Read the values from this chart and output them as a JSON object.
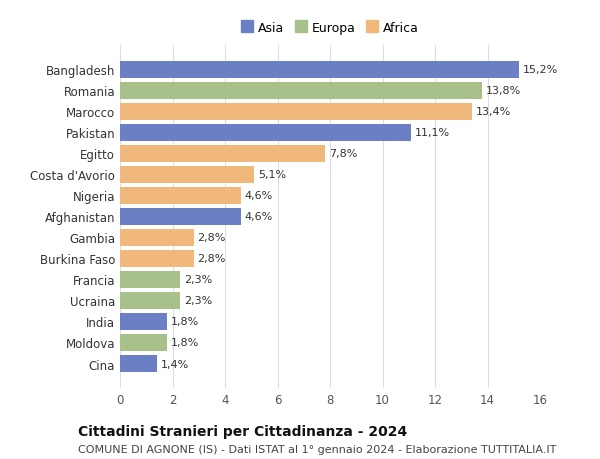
{
  "categories": [
    "Cina",
    "Moldova",
    "India",
    "Ucraina",
    "Francia",
    "Burkina Faso",
    "Gambia",
    "Afghanistan",
    "Nigeria",
    "Costa d'Avorio",
    "Egitto",
    "Pakistan",
    "Marocco",
    "Romania",
    "Bangladesh"
  ],
  "values": [
    1.4,
    1.8,
    1.8,
    2.3,
    2.3,
    2.8,
    2.8,
    4.6,
    4.6,
    5.1,
    7.8,
    11.1,
    13.4,
    13.8,
    15.2
  ],
  "continents": [
    "Asia",
    "Europa",
    "Asia",
    "Europa",
    "Europa",
    "Africa",
    "Africa",
    "Asia",
    "Africa",
    "Africa",
    "Africa",
    "Asia",
    "Africa",
    "Europa",
    "Asia"
  ],
  "colors": {
    "Asia": "#6b7fc4",
    "Europa": "#a8c08a",
    "Africa": "#f0b87a"
  },
  "xlim": [
    0,
    16
  ],
  "xticks": [
    0,
    2,
    4,
    6,
    8,
    10,
    12,
    14,
    16
  ],
  "title": "Cittadini Stranieri per Cittadinanza - 2024",
  "subtitle": "COMUNE DI AGNONE (IS) - Dati ISTAT al 1° gennaio 2024 - Elaborazione TUTTITALIA.IT",
  "title_fontsize": 10,
  "subtitle_fontsize": 8,
  "label_fontsize": 8,
  "tick_fontsize": 8.5,
  "legend_fontsize": 9,
  "bar_height": 0.82,
  "background_color": "#ffffff",
  "grid_color": "#dddddd"
}
